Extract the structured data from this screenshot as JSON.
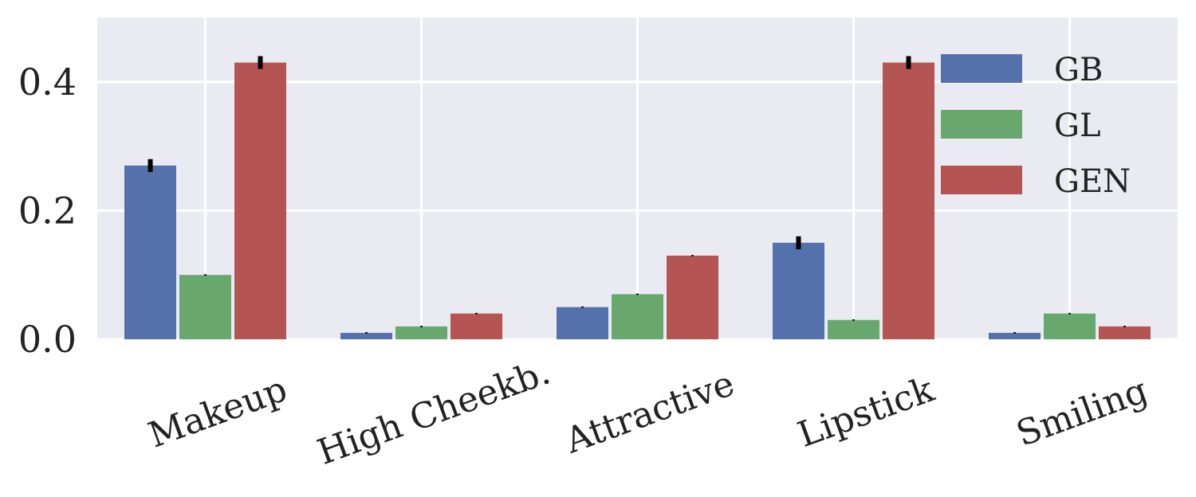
{
  "chart_data": {
    "type": "bar",
    "categories": [
      "Makeup",
      "High Cheekb.",
      "Attractive",
      "Lipstick",
      "Smiling"
    ],
    "series": [
      {
        "name": "GB",
        "values": [
          0.27,
          0.01,
          0.05,
          0.15,
          0.01
        ],
        "errors": [
          0.01,
          0.001,
          0.001,
          0.01,
          0.001
        ],
        "color": "#5571ab"
      },
      {
        "name": "GL",
        "values": [
          0.1,
          0.02,
          0.07,
          0.03,
          0.04
        ],
        "errors": [
          0.001,
          0.001,
          0.001,
          0.001,
          0.001
        ],
        "color": "#68a76d"
      },
      {
        "name": "GEN",
        "values": [
          0.43,
          0.04,
          0.13,
          0.43,
          0.02
        ],
        "errors": [
          0.01,
          0.001,
          0.001,
          0.01,
          0.001
        ],
        "color": "#b55553"
      }
    ],
    "yticks": [
      "0.0",
      "0.2",
      "0.4"
    ],
    "ytick_values": [
      0.0,
      0.2,
      0.4
    ],
    "ylim": [
      0,
      0.5
    ],
    "grid": true,
    "legend_position": "top-right",
    "background": "#eaeaf2"
  }
}
